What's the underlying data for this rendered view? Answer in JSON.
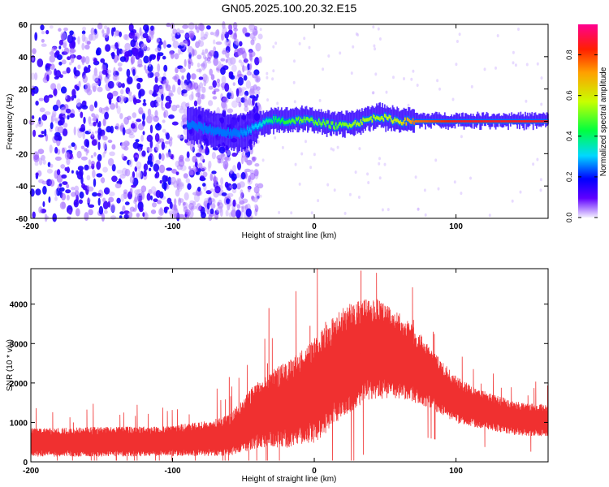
{
  "title": "GN05.2025.100.20.32.E15",
  "colors": {
    "snr_line": "#f03030",
    "background": "#ffffff",
    "axis": "#000000"
  },
  "chart_data": [
    {
      "type": "heatmap",
      "name": "spectrogram",
      "title": "GN05.2025.100.20.32.E15",
      "xlabel": "Height of straight line (km)",
      "ylabel": "Frequency (Hz)",
      "xlim": [
        -200,
        165
      ],
      "ylim": [
        -60,
        60
      ],
      "xticks": [
        -200,
        -100,
        0,
        100
      ],
      "yticks": [
        -60,
        -40,
        -20,
        0,
        20,
        40,
        60
      ],
      "colorbar": {
        "label": "Normalized spectral amplitude",
        "range": [
          0.0,
          0.95
        ],
        "ticks": [
          0.0,
          0.2,
          0.4,
          0.6,
          0.8
        ],
        "tick_labels": [
          "0.0",
          "0.2",
          "0.4",
          "0.6",
          "0.8"
        ],
        "colormap": "rainbow"
      },
      "noise_region": {
        "x": [
          -200,
          -38
        ],
        "y": [
          -60,
          60
        ],
        "amplitude": 0.1
      },
      "ridge": [
        {
          "x": -90,
          "y": -2,
          "amplitude": 0.25
        },
        {
          "x": -70,
          "y": -6,
          "amplitude": 0.25
        },
        {
          "x": -55,
          "y": -8,
          "amplitude": 0.25
        },
        {
          "x": -40,
          "y": -3,
          "amplitude": 0.3
        },
        {
          "x": -30,
          "y": 1,
          "amplitude": 0.4
        },
        {
          "x": -20,
          "y": 0,
          "amplitude": 0.45
        },
        {
          "x": -10,
          "y": 1,
          "amplitude": 0.5
        },
        {
          "x": 0,
          "y": 0,
          "amplitude": 0.5
        },
        {
          "x": 15,
          "y": -3,
          "amplitude": 0.5
        },
        {
          "x": 30,
          "y": -1,
          "amplitude": 0.55
        },
        {
          "x": 45,
          "y": 3,
          "amplitude": 0.55
        },
        {
          "x": 60,
          "y": 0,
          "amplitude": 0.6
        },
        {
          "x": 70,
          "y": 0,
          "amplitude": 0.75
        },
        {
          "x": 85,
          "y": 0,
          "amplitude": 0.8
        },
        {
          "x": 100,
          "y": 0,
          "amplitude": 0.85
        },
        {
          "x": 130,
          "y": 0,
          "amplitude": 0.85
        },
        {
          "x": 165,
          "y": 0,
          "amplitude": 0.85
        }
      ],
      "grid": false
    },
    {
      "type": "line",
      "name": "snr",
      "xlabel": "Height of straight line (km)",
      "ylabel": "SNR (10 * v/v)",
      "xlim": [
        -200,
        165
      ],
      "ylim": [
        0,
        4900
      ],
      "xticks": [
        -200,
        -100,
        0,
        100
      ],
      "yticks": [
        0,
        1000,
        2000,
        3000,
        4000
      ],
      "x": [
        -200,
        -180,
        -160,
        -140,
        -120,
        -100,
        -80,
        -60,
        -50,
        -40,
        -30,
        -20,
        -10,
        0,
        10,
        20,
        30,
        40,
        50,
        60,
        70,
        80,
        90,
        100,
        110,
        120,
        130,
        140,
        150,
        165
      ],
      "values": [
        480,
        480,
        490,
        500,
        500,
        520,
        560,
        650,
        900,
        1150,
        1300,
        1400,
        1550,
        1750,
        2100,
        2450,
        2700,
        2850,
        2750,
        2650,
        2450,
        2150,
        1850,
        1550,
        1400,
        1300,
        1200,
        1100,
        1050,
        1050
      ],
      "spread": [
        320,
        320,
        330,
        330,
        330,
        340,
        380,
        450,
        600,
        750,
        850,
        950,
        1050,
        1150,
        1200,
        1200,
        1200,
        1150,
        1050,
        950,
        850,
        700,
        600,
        520,
        460,
        420,
        400,
        380,
        360,
        360
      ],
      "peak": {
        "x": 33,
        "y": 4850
      },
      "grid": false
    }
  ]
}
